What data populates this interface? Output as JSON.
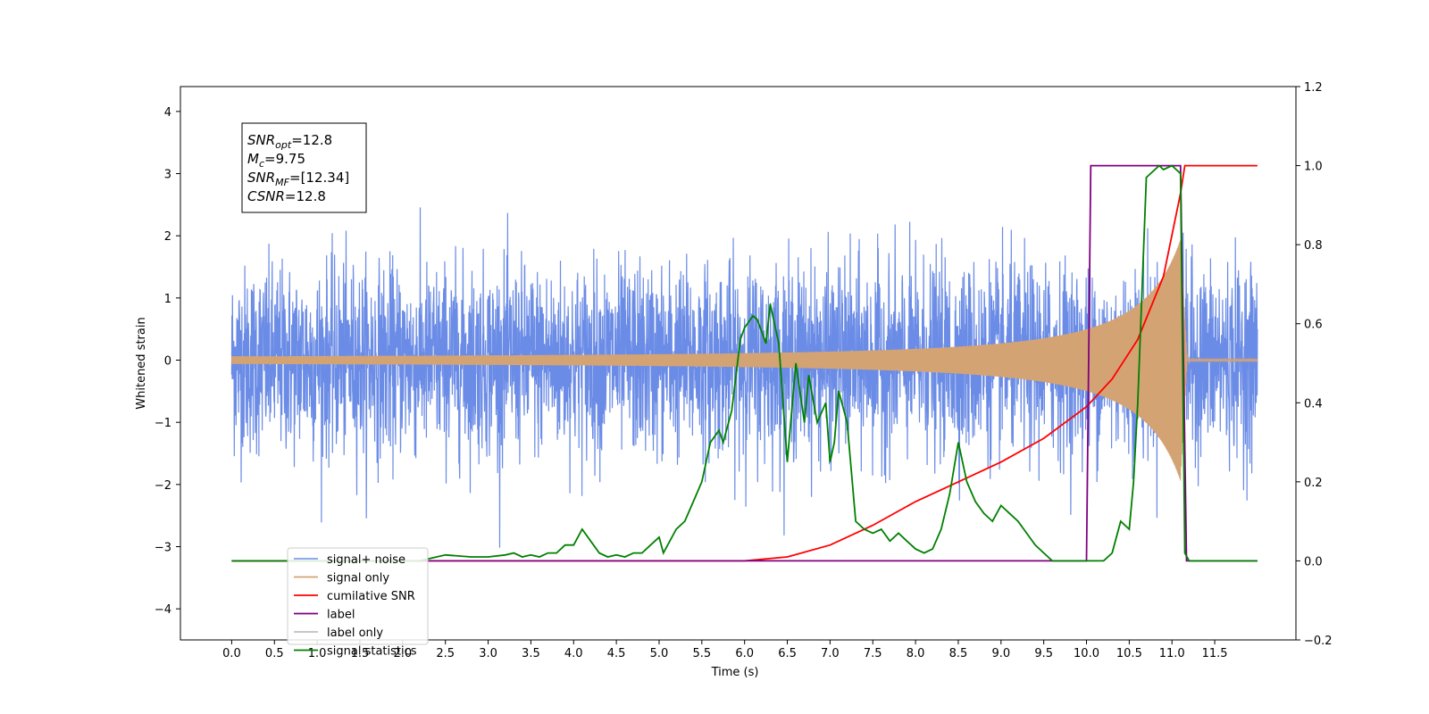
{
  "chart_data": {
    "type": "line",
    "title": "",
    "xlabel": "Time (s)",
    "ylabel": "Whitened strain",
    "y2label": "",
    "xlim": [
      -0.6,
      12.45
    ],
    "ylim": [
      -4.5,
      4.4
    ],
    "y2lim": [
      -0.2,
      1.2
    ],
    "grid": false,
    "legend_placement": "lower-left",
    "x_ticks": [
      "0.0",
      "0.5",
      "1.0",
      "1.5",
      "2.0",
      "2.5",
      "3.0",
      "3.5",
      "4.0",
      "4.5",
      "5.0",
      "5.5",
      "6.0",
      "6.5",
      "7.0",
      "7.5",
      "8.0",
      "8.5",
      "9.0",
      "9.5",
      "10.0",
      "10.5",
      "11.0",
      "11.5"
    ],
    "y_ticks": [
      "4",
      "3",
      "2",
      "1",
      "0",
      "−1",
      "−2",
      "−3",
      "−4"
    ],
    "y2_ticks": [
      "1.2",
      "1.0",
      "0.8",
      "0.6",
      "0.4",
      "0.2",
      "0.0",
      "−0.2"
    ],
    "annotation": {
      "lines": [
        {
          "main": "SNR",
          "sub": "opt",
          "rest": "=12.8"
        },
        {
          "main": "M",
          "sub": "c",
          "rest": "=9.75"
        },
        {
          "main": "SNR",
          "sub": "MF",
          "rest": "=[12.34]"
        },
        {
          "main": "CSNR",
          "sub": "",
          "rest": "=12.8"
        }
      ]
    },
    "series": [
      {
        "name": "signal+ noise",
        "color": "#6b8ce6",
        "axis": "left",
        "noise_std": 0.75,
        "t_start": 0.0,
        "t_end": 12.0
      },
      {
        "name": "signal only",
        "color": "#d4a373",
        "axis": "left",
        "peak_time": 11.1,
        "peak_amplitude": 1.9
      },
      {
        "name": "cumilative SNR",
        "color": "#ff0000",
        "axis": "right",
        "x": [
          0.0,
          5.0,
          6.0,
          6.5,
          7.0,
          7.5,
          8.0,
          8.5,
          9.0,
          9.5,
          10.0,
          10.3,
          10.6,
          10.9,
          11.1,
          11.15,
          12.0
        ],
        "y": [
          0.0,
          0.0,
          0.0,
          0.01,
          0.04,
          0.09,
          0.15,
          0.2,
          0.25,
          0.31,
          0.39,
          0.46,
          0.56,
          0.72,
          0.93,
          1.0,
          1.0
        ]
      },
      {
        "name": "label",
        "color": "#800080",
        "axis": "right",
        "x": [
          0.0,
          10.0,
          10.05,
          11.1,
          11.17,
          12.0
        ],
        "y": [
          0.0,
          0.0,
          1.0,
          1.0,
          0.0,
          0.0
        ]
      },
      {
        "name": "label only",
        "color": "#bfbfbf",
        "axis": "right",
        "x": [],
        "y": []
      },
      {
        "name": "signal statistics",
        "color": "#008000",
        "axis": "right",
        "x": [
          0.0,
          2.2,
          2.5,
          2.8,
          3.0,
          3.2,
          3.3,
          3.4,
          3.5,
          3.6,
          3.7,
          3.8,
          3.9,
          4.0,
          4.1,
          4.2,
          4.3,
          4.4,
          4.5,
          4.6,
          4.7,
          4.8,
          4.9,
          5.0,
          5.05,
          5.2,
          5.3,
          5.4,
          5.5,
          5.6,
          5.7,
          5.75,
          5.85,
          5.95,
          6.0,
          6.1,
          6.15,
          6.2,
          6.25,
          6.3,
          6.4,
          6.5,
          6.6,
          6.7,
          6.75,
          6.85,
          6.95,
          7.0,
          7.05,
          7.1,
          7.2,
          7.3,
          7.4,
          7.5,
          7.6,
          7.7,
          7.8,
          7.9,
          8.0,
          8.1,
          8.2,
          8.3,
          8.4,
          8.5,
          8.6,
          8.7,
          8.8,
          8.9,
          9.0,
          9.1,
          9.2,
          9.3,
          9.4,
          9.5,
          9.6,
          10.0,
          10.2,
          10.3,
          10.4,
          10.5,
          10.55,
          10.6,
          10.7,
          10.8,
          10.85,
          10.9,
          11.0,
          11.05,
          11.1,
          11.15,
          11.2,
          11.3,
          12.0
        ],
        "y": [
          0.0,
          0.0,
          0.015,
          0.01,
          0.01,
          0.015,
          0.02,
          0.01,
          0.015,
          0.01,
          0.02,
          0.02,
          0.04,
          0.04,
          0.08,
          0.05,
          0.02,
          0.01,
          0.015,
          0.01,
          0.02,
          0.02,
          0.04,
          0.06,
          0.02,
          0.08,
          0.1,
          0.15,
          0.2,
          0.3,
          0.33,
          0.3,
          0.38,
          0.56,
          0.59,
          0.62,
          0.61,
          0.58,
          0.55,
          0.65,
          0.55,
          0.25,
          0.5,
          0.35,
          0.47,
          0.35,
          0.4,
          0.25,
          0.3,
          0.43,
          0.35,
          0.1,
          0.08,
          0.07,
          0.08,
          0.05,
          0.07,
          0.05,
          0.03,
          0.02,
          0.03,
          0.08,
          0.17,
          0.3,
          0.2,
          0.15,
          0.12,
          0.1,
          0.14,
          0.12,
          0.1,
          0.07,
          0.04,
          0.02,
          0.0,
          0.0,
          0.0,
          0.02,
          0.1,
          0.08,
          0.2,
          0.4,
          0.97,
          0.99,
          1.0,
          0.99,
          1.0,
          0.99,
          0.98,
          0.02,
          0.0,
          0.0,
          0.0
        ]
      }
    ]
  }
}
